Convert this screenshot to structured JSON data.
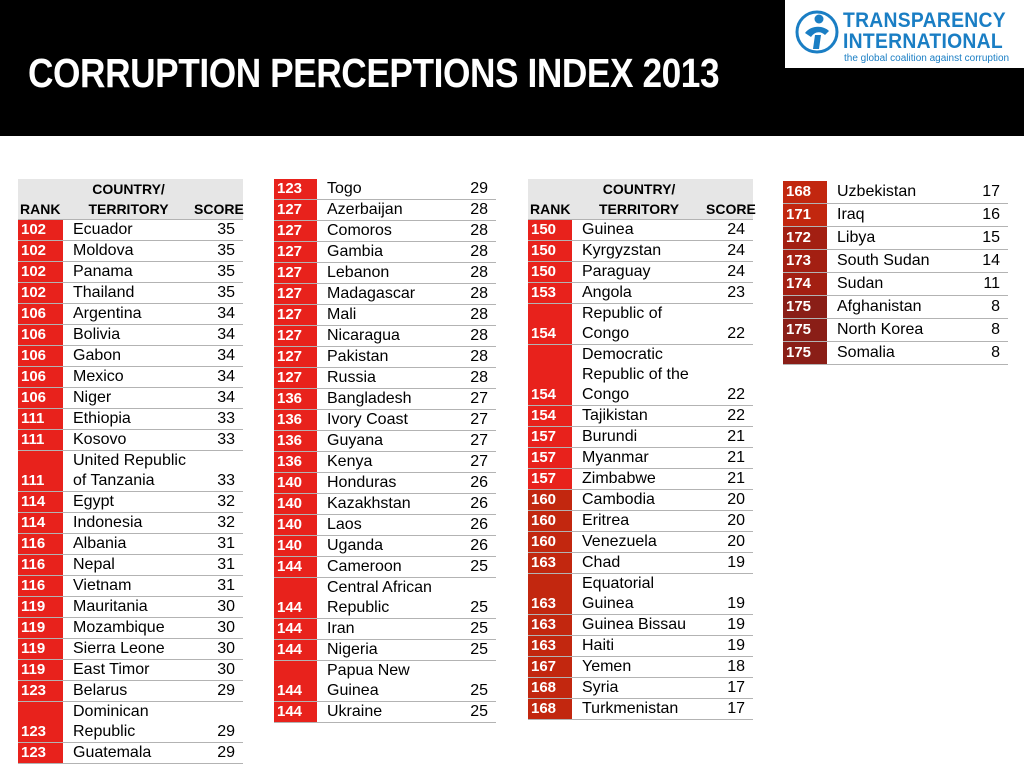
{
  "title": "CORRUPTION PERCEPTIONS INDEX 2013",
  "logo": {
    "line1": "TRANSPARENCY",
    "line2": "INTERNATIONAL",
    "tagline": "the global coalition against corruption"
  },
  "headers": {
    "rank": "RANK",
    "country_line1": "COUNTRY/",
    "country_line2": "TERRITORY",
    "score": "SCORE"
  },
  "colors": {
    "rank_red": "#e8221c",
    "rank_dark": "#c2270f",
    "rank_darker": "#a31f12",
    "rank_darkest": "#8a1e17",
    "logo_blue": "#1a7ec4"
  },
  "tables": [
    {
      "rows": [
        {
          "rank": "102",
          "country": "Ecuador",
          "score": "35"
        },
        {
          "rank": "102",
          "country": "Moldova",
          "score": "35"
        },
        {
          "rank": "102",
          "country": "Panama",
          "score": "35"
        },
        {
          "rank": "102",
          "country": "Thailand",
          "score": "35"
        },
        {
          "rank": "106",
          "country": "Argentina",
          "score": "34"
        },
        {
          "rank": "106",
          "country": "Bolivia",
          "score": "34"
        },
        {
          "rank": "106",
          "country": "Gabon",
          "score": "34"
        },
        {
          "rank": "106",
          "country": "Mexico",
          "score": "34"
        },
        {
          "rank": "106",
          "country": "Niger",
          "score": "34"
        },
        {
          "rank": "111",
          "country": "Ethiopia",
          "score": "33"
        },
        {
          "rank": "111",
          "country": "Kosovo",
          "score": "33"
        },
        {
          "rank": "111",
          "country": "United Republic of Tanzania",
          "score": "33"
        },
        {
          "rank": "114",
          "country": "Egypt",
          "score": "32"
        },
        {
          "rank": "114",
          "country": "Indonesia",
          "score": "32"
        },
        {
          "rank": "116",
          "country": "Albania",
          "score": "31"
        },
        {
          "rank": "116",
          "country": "Nepal",
          "score": "31"
        },
        {
          "rank": "116",
          "country": "Vietnam",
          "score": "31"
        },
        {
          "rank": "119",
          "country": "Mauritania",
          "score": "30"
        },
        {
          "rank": "119",
          "country": "Mozambique",
          "score": "30"
        },
        {
          "rank": "119",
          "country": "Sierra Leone",
          "score": "30"
        },
        {
          "rank": "119",
          "country": "East Timor",
          "score": "30"
        },
        {
          "rank": "123",
          "country": "Belarus",
          "score": "29"
        },
        {
          "rank": "123",
          "country": "Dominican Republic",
          "score": "29"
        },
        {
          "rank": "123",
          "country": "Guatemala",
          "score": "29"
        }
      ]
    },
    {
      "rows": [
        {
          "rank": "123",
          "country": "Togo",
          "score": "29"
        },
        {
          "rank": "127",
          "country": "Azerbaijan",
          "score": "28"
        },
        {
          "rank": "127",
          "country": "Comoros",
          "score": "28"
        },
        {
          "rank": "127",
          "country": "Gambia",
          "score": "28"
        },
        {
          "rank": "127",
          "country": "Lebanon",
          "score": "28"
        },
        {
          "rank": "127",
          "country": "Madagascar",
          "score": "28"
        },
        {
          "rank": "127",
          "country": "Mali",
          "score": "28"
        },
        {
          "rank": "127",
          "country": "Nicaragua",
          "score": "28"
        },
        {
          "rank": "127",
          "country": "Pakistan",
          "score": "28"
        },
        {
          "rank": "127",
          "country": "Russia",
          "score": "28"
        },
        {
          "rank": "136",
          "country": "Bangladesh",
          "score": "27"
        },
        {
          "rank": "136",
          "country": "Ivory Coast",
          "score": "27"
        },
        {
          "rank": "136",
          "country": "Guyana",
          "score": "27"
        },
        {
          "rank": "136",
          "country": "Kenya",
          "score": "27"
        },
        {
          "rank": "140",
          "country": "Honduras",
          "score": "26"
        },
        {
          "rank": "140",
          "country": "Kazakhstan",
          "score": "26"
        },
        {
          "rank": "140",
          "country": "Laos",
          "score": "26"
        },
        {
          "rank": "140",
          "country": "Uganda",
          "score": "26"
        },
        {
          "rank": "144",
          "country": "Cameroon",
          "score": "25"
        },
        {
          "rank": "144",
          "country": "Central African Republic",
          "score": "25"
        },
        {
          "rank": "144",
          "country": "Iran",
          "score": "25"
        },
        {
          "rank": "144",
          "country": "Nigeria",
          "score": "25"
        },
        {
          "rank": "144",
          "country": "Papua New Guinea",
          "score": "25"
        },
        {
          "rank": "144",
          "country": "Ukraine",
          "score": "25"
        }
      ]
    },
    {
      "rows": [
        {
          "rank": "150",
          "country": "Guinea",
          "score": "24"
        },
        {
          "rank": "150",
          "country": "Kyrgyzstan",
          "score": "24"
        },
        {
          "rank": "150",
          "country": "Paraguay",
          "score": "24"
        },
        {
          "rank": "153",
          "country": "Angola",
          "score": "23"
        },
        {
          "rank": "154",
          "country": "Republic of Congo",
          "score": "22"
        },
        {
          "rank": "154",
          "country": "Democratic Republic of the Congo",
          "score": "22"
        },
        {
          "rank": "154",
          "country": "Tajikistan",
          "score": "22"
        },
        {
          "rank": "157",
          "country": "Burundi",
          "score": "21"
        },
        {
          "rank": "157",
          "country": "Myanmar",
          "score": "21"
        },
        {
          "rank": "157",
          "country": "Zimbabwe",
          "score": "21"
        },
        {
          "rank": "160",
          "country": "Cambodia",
          "score": "20"
        },
        {
          "rank": "160",
          "country": "Eritrea",
          "score": "20"
        },
        {
          "rank": "160",
          "country": "Venezuela",
          "score": "20"
        },
        {
          "rank": "163",
          "country": "Chad",
          "score": "19"
        },
        {
          "rank": "163",
          "country": "Equatorial Guinea",
          "score": "19"
        },
        {
          "rank": "163",
          "country": "Guinea Bissau",
          "score": "19"
        },
        {
          "rank": "163",
          "country": "Haiti",
          "score": "19"
        },
        {
          "rank": "167",
          "country": "Yemen",
          "score": "18"
        },
        {
          "rank": "168",
          "country": "Syria",
          "score": "17"
        },
        {
          "rank": "168",
          "country": "Turkmenistan",
          "score": "17"
        }
      ]
    },
    {
      "rows": [
        {
          "rank": "168",
          "country": "Uzbekistan",
          "score": "17"
        },
        {
          "rank": "171",
          "country": "Iraq",
          "score": "16"
        },
        {
          "rank": "172",
          "country": "Libya",
          "score": "15"
        },
        {
          "rank": "173",
          "country": "South Sudan",
          "score": "14"
        },
        {
          "rank": "174",
          "country": "Sudan",
          "score": "11"
        },
        {
          "rank": "175",
          "country": "Afghanistan",
          "score": "8"
        },
        {
          "rank": "175",
          "country": "North Korea",
          "score": "8"
        },
        {
          "rank": "175",
          "country": "Somalia",
          "score": "8"
        }
      ]
    }
  ]
}
